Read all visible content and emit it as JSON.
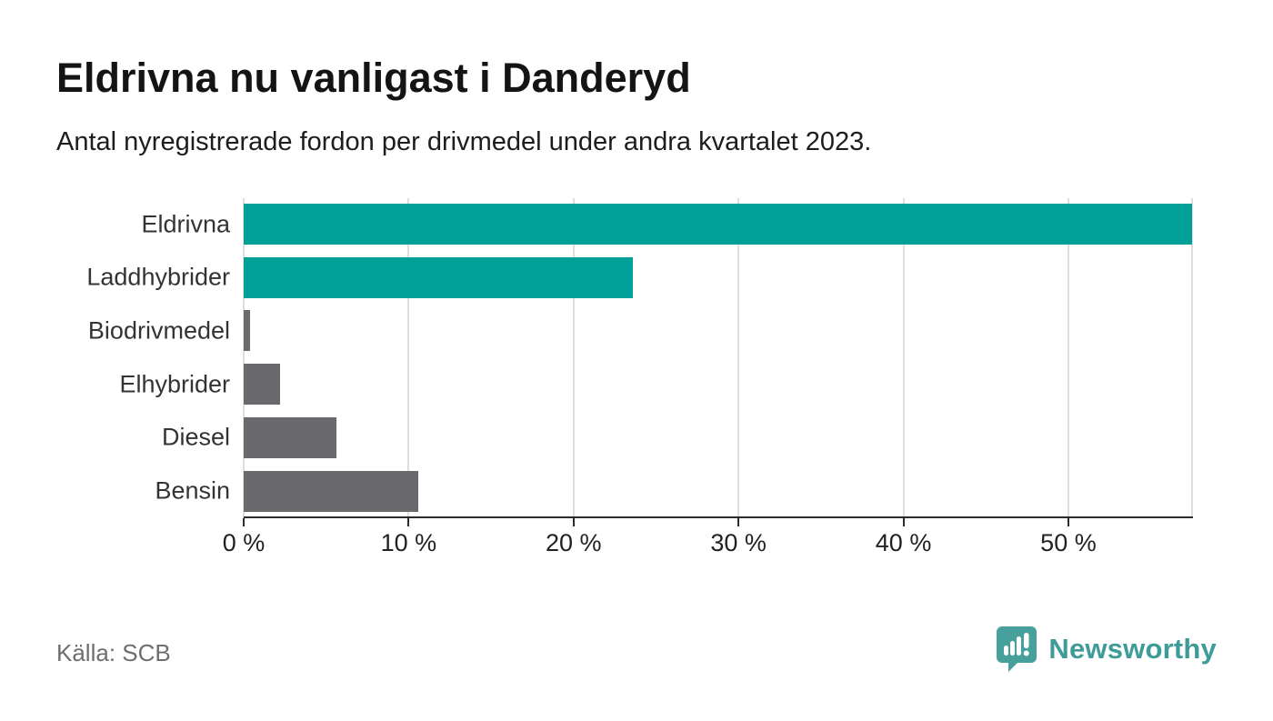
{
  "header": {
    "title": "Eldrivna nu vanligast i Danderyd",
    "subtitle": "Antal nyregistrerade fordon per drivmedel under andra kvartalet 2023."
  },
  "chart_data": {
    "type": "bar",
    "orientation": "horizontal",
    "title": "Eldrivna nu vanligast i Danderyd",
    "subtitle": "Antal nyregistrerade fordon per drivmedel under andra kvartalet 2023.",
    "categories": [
      "Eldrivna",
      "Laddhybrider",
      "Biodrivmedel",
      "Elhybrider",
      "Diesel",
      "Bensin"
    ],
    "values": [
      57.5,
      23.6,
      0.4,
      2.2,
      5.6,
      10.6
    ],
    "unit": "%",
    "xlabel": "",
    "ylabel": "",
    "xlim": [
      0,
      57.5
    ],
    "x_ticks": [
      0,
      10,
      20,
      30,
      40,
      50
    ],
    "x_tick_labels": [
      "0 %",
      "10 %",
      "20 %",
      "30 %",
      "40 %",
      "50 %"
    ],
    "bar_colors": [
      "#00a099",
      "#00a099",
      "#6a6a6e",
      "#6a6a6e",
      "#6a6a6e",
      "#6a6a6e"
    ],
    "grid": true,
    "legend": false,
    "highlight_color": "#00a099",
    "default_color": "#6a6a6e"
  },
  "footer": {
    "source": "Källa: SCB",
    "brand": "Newsworthy"
  },
  "colors": {
    "accent_teal": "#00a099",
    "bar_gray": "#6a6a6e",
    "gridline": "#dedede",
    "axis": "#2b2b2b",
    "logo_teal": "#3f9b98",
    "source_text": "#6e6e6e"
  }
}
